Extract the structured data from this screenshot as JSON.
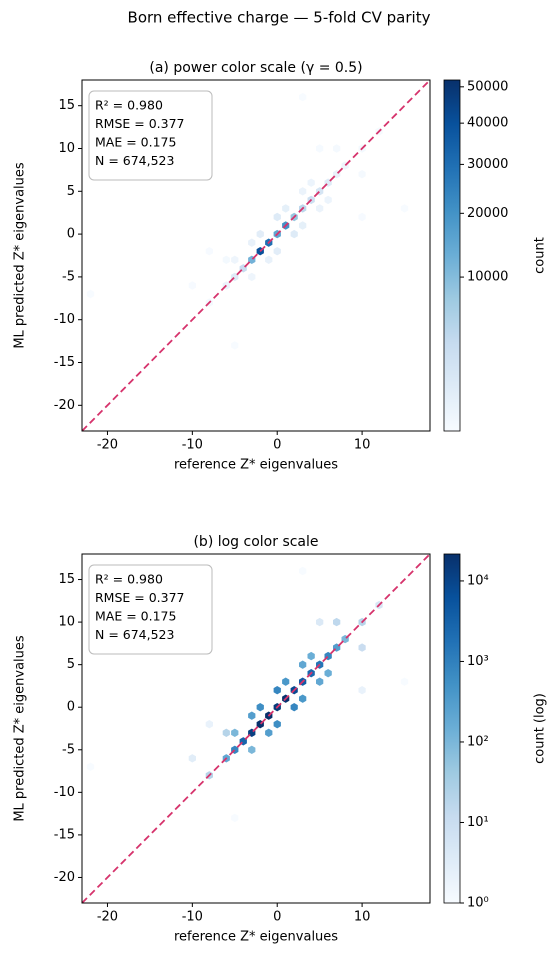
{
  "title": "Born effective charge — 5-fold CV parity",
  "chart_data": [
    {
      "type": "hexbin",
      "title": "(a) power color scale (γ = 0.5)",
      "x_label": "reference Z* eigenvalues",
      "y_label": "ML predicted Z* eigenvalues",
      "annotation": [
        "R² = 0.980",
        "RMSE = 0.377",
        "MAE = 0.175",
        "N = 674,523"
      ],
      "x": [
        -8,
        -6,
        -5,
        -4,
        -3,
        -2,
        -1,
        0,
        1,
        2,
        3,
        4,
        5,
        6,
        7,
        8,
        10,
        12,
        -3,
        -1,
        1,
        3,
        0,
        2,
        -2,
        0,
        4,
        6,
        5,
        3,
        -5,
        -3,
        -6,
        7,
        10,
        -10,
        5,
        -8,
        10,
        -22,
        3,
        -5,
        15
      ],
      "y": [
        -8,
        -6,
        -5,
        -4,
        -3,
        -2,
        -1,
        0,
        1,
        2,
        3,
        4,
        5,
        6,
        7,
        8,
        10,
        12,
        -1,
        -3,
        3,
        1,
        2,
        0,
        0,
        -2,
        6,
        4,
        3,
        5,
        -3,
        -5,
        -3,
        10,
        7,
        -6,
        10,
        -2,
        2,
        -7,
        16,
        -13,
        3
      ],
      "counts": [
        20,
        200,
        800,
        3000,
        12000,
        40000,
        30000,
        15000,
        20000,
        8000,
        4000,
        2500,
        1500,
        800,
        300,
        100,
        20,
        5,
        300,
        300,
        400,
        400,
        800,
        800,
        600,
        600,
        150,
        150,
        200,
        200,
        100,
        100,
        20,
        15,
        10,
        3,
        4,
        2,
        2,
        1,
        1,
        1,
        1
      ],
      "norm": "power",
      "gamma": 0.5,
      "clim": [
        1,
        52000
      ],
      "colormap": [
        "#f7fbff",
        "#deebf7",
        "#c6dbef",
        "#9ecae1",
        "#6baed6",
        "#4292c6",
        "#2171b5",
        "#08519c",
        "#08306b"
      ],
      "colorbar_label": "count",
      "cticks": [
        10000,
        20000,
        30000,
        40000,
        50000
      ],
      "xlim": [
        -23,
        18
      ],
      "ylim": [
        -23,
        18
      ],
      "xticks": [
        -20,
        -10,
        0,
        10
      ],
      "yticks": [
        -20,
        -15,
        -10,
        -5,
        0,
        5,
        10,
        15
      ],
      "identity_color": "#d6336c"
    },
    {
      "type": "hexbin",
      "title": "(b) log color scale",
      "x_label": "reference Z* eigenvalues",
      "y_label": "ML predicted Z* eigenvalues",
      "annotation": [
        "R² = 0.980",
        "RMSE = 0.377",
        "MAE = 0.175",
        "N = 674,523"
      ],
      "x": [
        -8,
        -6,
        -5,
        -4,
        -3,
        -2,
        -1,
        0,
        1,
        2,
        3,
        4,
        5,
        6,
        7,
        8,
        10,
        12,
        -3,
        -1,
        1,
        3,
        0,
        2,
        -2,
        0,
        4,
        6,
        5,
        3,
        -5,
        -3,
        -6,
        7,
        10,
        -10,
        5,
        -8,
        10,
        -22,
        3,
        -5,
        15
      ],
      "y": [
        -8,
        -6,
        -5,
        -4,
        -3,
        -2,
        -1,
        0,
        1,
        2,
        3,
        4,
        5,
        6,
        7,
        8,
        10,
        12,
        -1,
        -3,
        3,
        1,
        2,
        0,
        0,
        -2,
        6,
        4,
        3,
        5,
        -3,
        -5,
        -3,
        10,
        7,
        -6,
        10,
        -2,
        2,
        -7,
        16,
        -13,
        3
      ],
      "counts": [
        20,
        200,
        800,
        3000,
        12000,
        40000,
        30000,
        15000,
        20000,
        8000,
        4000,
        2500,
        1500,
        800,
        300,
        100,
        20,
        5,
        300,
        300,
        400,
        400,
        800,
        800,
        600,
        600,
        150,
        150,
        200,
        200,
        100,
        100,
        20,
        15,
        10,
        3,
        4,
        2,
        2,
        1,
        1,
        1,
        1
      ],
      "norm": "log",
      "clim": [
        1,
        21600
      ],
      "colormap": [
        "#f7fbff",
        "#deebf7",
        "#c6dbef",
        "#9ecae1",
        "#6baed6",
        "#4292c6",
        "#2171b5",
        "#08519c",
        "#08306b"
      ],
      "colorbar_label": "count (log)",
      "cticks": [
        {
          "value": 1,
          "label": "10⁰"
        },
        {
          "value": 10,
          "label": "10¹"
        },
        {
          "value": 100,
          "label": "10²"
        },
        {
          "value": 1000,
          "label": "10³"
        },
        {
          "value": 10000,
          "label": "10⁴"
        }
      ],
      "xlim": [
        -23,
        18
      ],
      "ylim": [
        -23,
        18
      ],
      "xticks": [
        -20,
        -10,
        0,
        10
      ],
      "yticks": [
        -20,
        -15,
        -10,
        -5,
        0,
        5,
        10,
        15
      ],
      "identity_color": "#d6336c"
    }
  ]
}
